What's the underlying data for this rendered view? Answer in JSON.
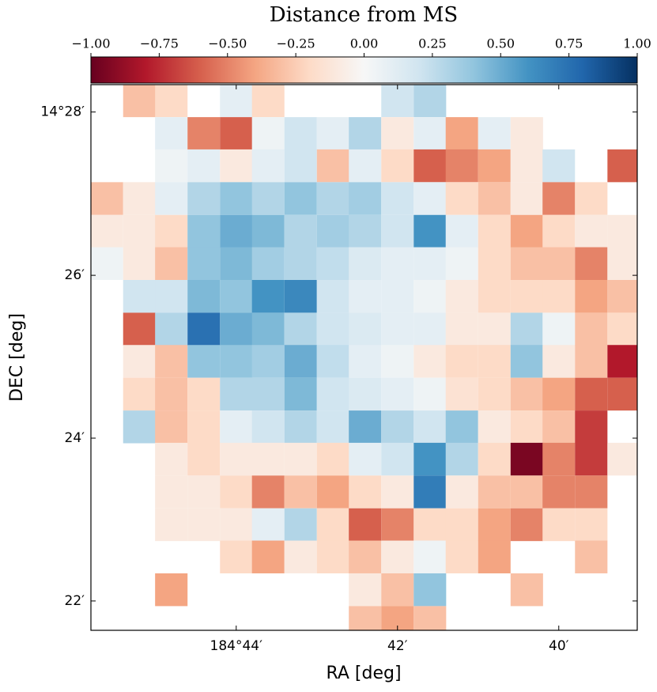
{
  "chart_data": {
    "type": "heatmap",
    "title": "Distance from MS",
    "xlabel": "RA [deg]",
    "ylabel": "DEC [deg]",
    "colormap": "RdBu",
    "clim": [
      -1,
      1
    ],
    "cticks": [
      {
        "value": -1,
        "label": "−1.00"
      },
      {
        "value": -0.75,
        "label": "−0.75"
      },
      {
        "value": -0.5,
        "label": "−0.50"
      },
      {
        "value": -0.25,
        "label": "−0.25"
      },
      {
        "value": 0,
        "label": "0.00"
      },
      {
        "value": 0.25,
        "label": "0.25"
      },
      {
        "value": 0.5,
        "label": "0.50"
      },
      {
        "value": 0.75,
        "label": "0.75"
      },
      {
        "value": 1,
        "label": "1.00"
      }
    ],
    "xlim": [
      184.7633,
      184.6505
    ],
    "ylim": [
      14.3607,
      14.4723
    ],
    "xticks": [
      {
        "value": 184.7333,
        "label": "184°44′"
      },
      {
        "value": 184.7,
        "label": "42′"
      },
      {
        "value": 184.6667,
        "label": "40′"
      }
    ],
    "yticks": [
      {
        "value": 14.4667,
        "label": "14°28′"
      },
      {
        "value": 14.4333,
        "label": "26′"
      },
      {
        "value": 14.4,
        "label": "24′"
      },
      {
        "value": 14.3667,
        "label": "22′"
      }
    ],
    "x": [
      184.76,
      184.7533,
      184.7467,
      184.74,
      184.7333,
      184.7267,
      184.72,
      184.7133,
      184.7067,
      184.7,
      184.6933,
      184.6867,
      184.68,
      184.6733,
      184.6667,
      184.66,
      184.6533
    ],
    "y": [
      14.469,
      14.4623,
      14.4557,
      14.449,
      14.4423,
      14.4357,
      14.429,
      14.4223,
      14.4157,
      14.409,
      14.4023,
      14.3957,
      14.389,
      14.3823,
      14.3757,
      14.369,
      14.3623
    ],
    "values": [
      [
        null,
        -0.3,
        -0.2,
        null,
        0.1,
        -0.2,
        null,
        null,
        null,
        0.2,
        0.3,
        null,
        null,
        null,
        null,
        null,
        null
      ],
      [
        null,
        null,
        0.1,
        -0.5,
        -0.6,
        0.05,
        0.2,
        0.1,
        0.3,
        -0.1,
        0.1,
        -0.4,
        0.1,
        -0.1,
        null,
        null,
        null
      ],
      [
        null,
        null,
        0.05,
        0.1,
        -0.1,
        0.1,
        0.2,
        -0.3,
        0.1,
        -0.2,
        -0.6,
        -0.5,
        -0.4,
        -0.1,
        0.2,
        null,
        -0.6
      ],
      [
        -0.3,
        -0.1,
        0.1,
        0.3,
        0.4,
        0.3,
        0.4,
        0.3,
        0.35,
        0.2,
        0.1,
        -0.2,
        -0.3,
        -0.1,
        -0.5,
        -0.2,
        null
      ],
      [
        -0.1,
        -0.1,
        -0.2,
        0.4,
        0.5,
        0.45,
        0.3,
        0.35,
        0.3,
        0.2,
        0.6,
        0.1,
        -0.2,
        -0.4,
        -0.2,
        -0.1,
        -0.1
      ],
      [
        0.05,
        -0.1,
        -0.3,
        0.4,
        0.45,
        0.35,
        0.3,
        0.25,
        0.15,
        0.1,
        0.1,
        0.05,
        -0.2,
        -0.3,
        -0.3,
        -0.5,
        -0.1
      ],
      [
        null,
        0.2,
        0.2,
        0.45,
        0.4,
        0.6,
        0.65,
        0.2,
        0.1,
        0.1,
        0.05,
        -0.1,
        -0.2,
        -0.2,
        -0.2,
        -0.4,
        -0.3
      ],
      [
        null,
        -0.6,
        0.3,
        0.75,
        0.5,
        0.45,
        0.3,
        0.2,
        0.15,
        0.1,
        0.1,
        -0.1,
        -0.1,
        0.3,
        0.05,
        -0.3,
        -0.2
      ],
      [
        null,
        -0.1,
        -0.3,
        0.4,
        0.4,
        0.35,
        0.5,
        0.25,
        0.1,
        0.05,
        -0.1,
        -0.2,
        -0.2,
        0.4,
        -0.1,
        -0.3,
        -0.8
      ],
      [
        null,
        -0.2,
        -0.3,
        -0.2,
        0.3,
        0.3,
        0.45,
        0.2,
        0.15,
        0.1,
        0.05,
        -0.15,
        -0.2,
        -0.3,
        -0.4,
        -0.6,
        -0.6
      ],
      [
        null,
        0.3,
        -0.3,
        -0.2,
        0.1,
        0.2,
        0.3,
        0.2,
        0.5,
        0.3,
        0.2,
        0.4,
        -0.1,
        -0.2,
        -0.3,
        -0.7,
        null
      ],
      [
        null,
        null,
        -0.1,
        -0.2,
        -0.1,
        -0.1,
        -0.1,
        -0.2,
        0.1,
        0.2,
        0.6,
        0.3,
        -0.2,
        -0.95,
        -0.5,
        -0.7,
        -0.1
      ],
      [
        null,
        null,
        -0.1,
        -0.1,
        -0.2,
        -0.5,
        -0.3,
        -0.4,
        -0.2,
        -0.1,
        0.7,
        -0.1,
        -0.3,
        -0.3,
        -0.5,
        -0.5,
        null
      ],
      [
        null,
        null,
        -0.1,
        -0.1,
        -0.1,
        0.1,
        0.3,
        -0.2,
        -0.6,
        -0.5,
        -0.2,
        -0.2,
        -0.4,
        -0.5,
        -0.2,
        -0.2,
        null
      ],
      [
        null,
        null,
        null,
        null,
        -0.2,
        -0.4,
        -0.1,
        -0.2,
        -0.3,
        -0.1,
        0.05,
        -0.2,
        -0.4,
        null,
        null,
        -0.3,
        null
      ],
      [
        null,
        null,
        -0.4,
        null,
        null,
        null,
        null,
        null,
        -0.1,
        -0.3,
        0.4,
        null,
        null,
        -0.3,
        null,
        null,
        null
      ],
      [
        null,
        null,
        null,
        null,
        null,
        null,
        null,
        null,
        -0.3,
        -0.4,
        -0.3,
        null,
        null,
        null,
        null,
        null,
        null
      ]
    ]
  }
}
